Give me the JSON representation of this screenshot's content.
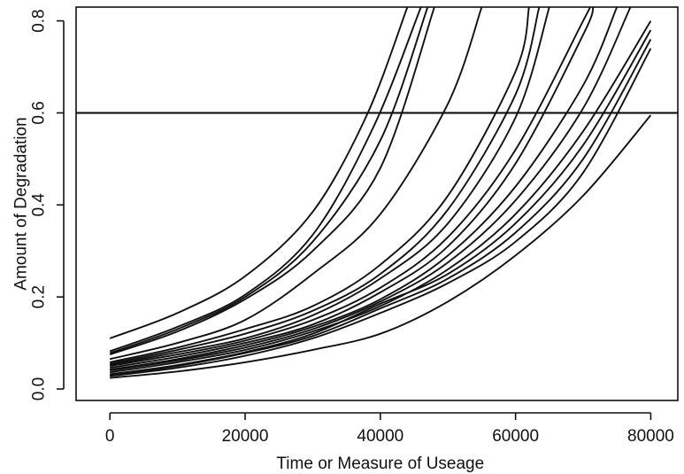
{
  "chart_data": {
    "type": "line",
    "title": "",
    "xlabel": "Time or Measure of Useage",
    "ylabel": "Amount of Degradation",
    "xlim": [
      -5000,
      84000
    ],
    "ylim": [
      -0.025,
      0.83
    ],
    "x_ticks": [
      0,
      20000,
      40000,
      60000,
      80000
    ],
    "x_tick_labels": [
      "0",
      "20000",
      "40000",
      "60000",
      "80000"
    ],
    "y_ticks": [
      0.0,
      0.2,
      0.4,
      0.6,
      0.8
    ],
    "y_tick_labels": [
      "0.0",
      "0.2",
      "0.4",
      "0.6",
      "0.8"
    ],
    "grid": false,
    "reference_line": {
      "y": 0.6
    },
    "series": [
      {
        "x": [
          0,
          10000,
          20000,
          30000,
          38000,
          44000
        ],
        "y": [
          0.11,
          0.165,
          0.245,
          0.385,
          0.595,
          0.83
        ]
      },
      {
        "x": [
          0,
          10000,
          20000,
          30000,
          39000,
          46000
        ],
        "y": [
          0.082,
          0.135,
          0.205,
          0.335,
          0.57,
          0.83
        ]
      },
      {
        "x": [
          0,
          10000,
          20000,
          30000,
          40000,
          47000
        ],
        "y": [
          0.078,
          0.13,
          0.2,
          0.32,
          0.54,
          0.83
        ]
      },
      {
        "x": [
          0,
          10000,
          20000,
          30000,
          40000,
          48000
        ],
        "y": [
          0.075,
          0.125,
          0.195,
          0.3,
          0.48,
          0.83
        ]
      },
      {
        "x": [
          0,
          10000,
          20000,
          30000,
          40000,
          50000,
          55000
        ],
        "y": [
          0.065,
          0.1,
          0.15,
          0.25,
          0.38,
          0.62,
          0.83
        ]
      },
      {
        "x": [
          0,
          10000,
          20000,
          30000,
          40000,
          50000,
          60000,
          62000
        ],
        "y": [
          0.058,
          0.09,
          0.13,
          0.18,
          0.27,
          0.42,
          0.69,
          0.83
        ]
      },
      {
        "x": [
          0,
          10000,
          20000,
          30000,
          40000,
          50000,
          60000,
          63500
        ],
        "y": [
          0.055,
          0.085,
          0.12,
          0.17,
          0.25,
          0.39,
          0.64,
          0.83
        ]
      },
      {
        "x": [
          0,
          10000,
          20000,
          30000,
          40000,
          50000,
          60000,
          65000
        ],
        "y": [
          0.052,
          0.08,
          0.11,
          0.16,
          0.24,
          0.36,
          0.59,
          0.83
        ]
      },
      {
        "x": [
          0,
          10000,
          20000,
          30000,
          40000,
          50000,
          60000,
          70000,
          71000
        ],
        "y": [
          0.05,
          0.075,
          0.105,
          0.15,
          0.22,
          0.33,
          0.52,
          0.8,
          0.83
        ]
      },
      {
        "x": [
          0,
          10000,
          20000,
          30000,
          40000,
          50000,
          60000,
          70000,
          71500
        ],
        "y": [
          0.046,
          0.07,
          0.1,
          0.14,
          0.21,
          0.31,
          0.49,
          0.77,
          0.83
        ]
      },
      {
        "x": [
          0,
          10000,
          20000,
          30000,
          40000,
          50000,
          60000,
          70000,
          75000
        ],
        "y": [
          0.042,
          0.065,
          0.095,
          0.135,
          0.195,
          0.29,
          0.44,
          0.66,
          0.83
        ]
      },
      {
        "x": [
          0,
          10000,
          20000,
          30000,
          40000,
          50000,
          60000,
          70000,
          77000
        ],
        "y": [
          0.04,
          0.062,
          0.09,
          0.13,
          0.19,
          0.275,
          0.41,
          0.61,
          0.83
        ]
      },
      {
        "x": [
          0,
          10000,
          20000,
          30000,
          40000,
          50000,
          60000,
          70000,
          80000
        ],
        "y": [
          0.036,
          0.058,
          0.085,
          0.125,
          0.18,
          0.26,
          0.38,
          0.56,
          0.8
        ]
      },
      {
        "x": [
          0,
          10000,
          20000,
          30000,
          40000,
          50000,
          60000,
          70000,
          80000
        ],
        "y": [
          0.032,
          0.052,
          0.08,
          0.12,
          0.185,
          0.25,
          0.36,
          0.53,
          0.78
        ]
      },
      {
        "x": [
          0,
          10000,
          20000,
          30000,
          40000,
          50000,
          60000,
          70000,
          80000
        ],
        "y": [
          0.03,
          0.05,
          0.078,
          0.115,
          0.175,
          0.24,
          0.34,
          0.5,
          0.76
        ]
      },
      {
        "x": [
          0,
          10000,
          20000,
          30000,
          40000,
          50000,
          60000,
          70000,
          80000
        ],
        "y": [
          0.028,
          0.046,
          0.072,
          0.11,
          0.165,
          0.23,
          0.32,
          0.47,
          0.74
        ]
      },
      {
        "x": [
          0,
          10000,
          20000,
          30000,
          40000,
          50000,
          60000,
          70000,
          80000
        ],
        "y": [
          0.024,
          0.038,
          0.058,
          0.085,
          0.12,
          0.19,
          0.29,
          0.42,
          0.595
        ]
      }
    ]
  }
}
